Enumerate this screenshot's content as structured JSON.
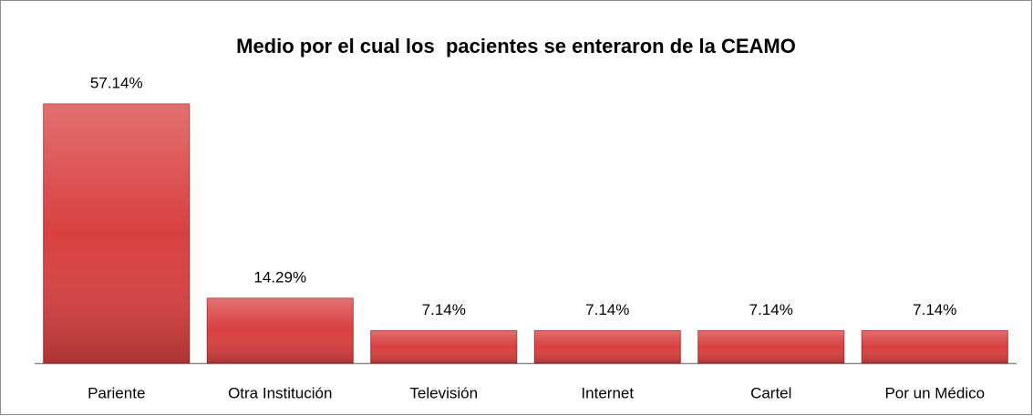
{
  "chart_data": {
    "type": "bar",
    "title": "Medio por el cual los  pacientes se enteraron de la CEAMO",
    "categories": [
      "Pariente",
      "Otra Institución",
      "Televisión",
      "Internet",
      "Cartel",
      "Por un Médico"
    ],
    "values": [
      57.14,
      14.29,
      7.14,
      7.14,
      7.14,
      7.14
    ],
    "value_labels": [
      "57.14%",
      "14.29%",
      "7.14%",
      "7.14%",
      "7.14%",
      "7.14%"
    ],
    "color": "#d8403f"
  }
}
